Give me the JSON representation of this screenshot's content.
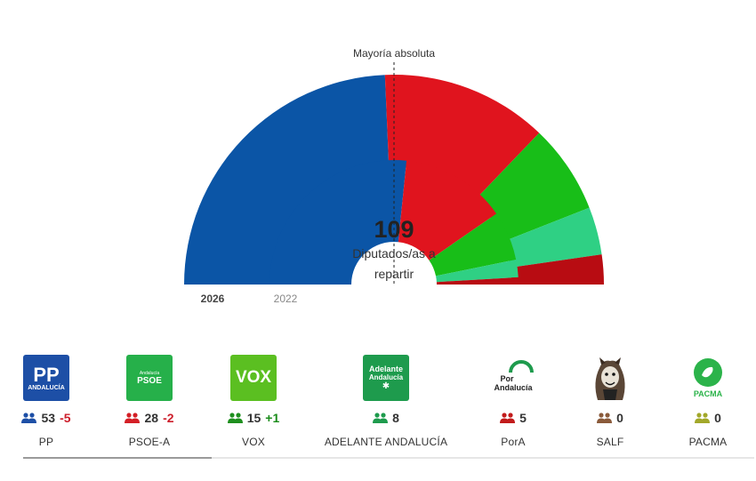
{
  "chart_data": {
    "type": "parliament-hemicycle",
    "annotation": "Mayoría absoluta",
    "center_value": "109",
    "center_label_line1": "Diputados/as a",
    "center_label_line2": "repartir",
    "total_seats": 109,
    "rings": [
      {
        "label": "2026",
        "seats": [
          53,
          28,
          15,
          8,
          5
        ]
      },
      {
        "label": "2022",
        "seats": [
          58,
          30,
          14,
          5,
          2
        ]
      }
    ],
    "series_colors": [
      "#0b55a6",
      "#e0141e",
      "#18be18",
      "#2fd084",
      "#b80c12"
    ]
  },
  "parties": [
    {
      "name": "PP",
      "seats": "53",
      "delta": "-5",
      "delta_sign": "neg",
      "color": "#1d4fa6",
      "logo": "pp-logo",
      "logo_text": "PP",
      "logo_sub": "ANDALUCÍA"
    },
    {
      "name": "PSOE-A",
      "seats": "28",
      "delta": "-2",
      "delta_sign": "neg",
      "color": "#d41f26",
      "logo": "psoe-logo",
      "logo_text": "PSOE",
      "logo_sub": "Andalucía"
    },
    {
      "name": "VOX",
      "seats": "15",
      "delta": "+1",
      "delta_sign": "pos",
      "color": "#1e8f1e",
      "logo": "vox-logo",
      "logo_text": "VOX"
    },
    {
      "name": "ADELANTE ANDALUCÍA",
      "seats": "8",
      "delta": "",
      "delta_sign": "",
      "color": "#1e9b4d",
      "logo": "adelante-logo",
      "logo_text": "Adelante",
      "logo_sub": "Andalucía"
    },
    {
      "name": "PorA",
      "seats": "5",
      "delta": "",
      "delta_sign": "",
      "color": "#c21b1b",
      "logo": "pora-logo",
      "logo_text": "Por",
      "logo_sub": "Andalucía"
    },
    {
      "name": "SALF",
      "seats": "0",
      "delta": "",
      "delta_sign": "",
      "color": "#8a5a3a",
      "logo": "salf-logo"
    },
    {
      "name": "PACMA",
      "seats": "0",
      "delta": "",
      "delta_sign": "",
      "color": "#a2a82a",
      "logo": "pacma-logo",
      "logo_text": "PACMA"
    }
  ]
}
